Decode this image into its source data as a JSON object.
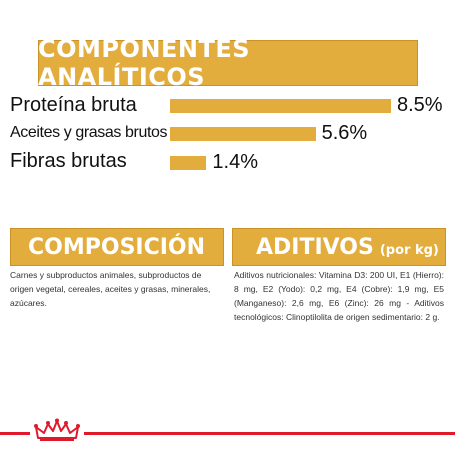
{
  "analytic": {
    "title": "COMPONENTES ANALÍTICOS",
    "rows": [
      {
        "label": "Proteína bruta",
        "value": "8.5%",
        "percent": 8.5
      },
      {
        "label": "Aceites y grasas brutos",
        "value": "5.6%",
        "percent": 5.6
      },
      {
        "label": "Fibras brutas",
        "value": "1.4%",
        "percent": 1.4
      }
    ]
  },
  "composicion": {
    "title": "COMPOSICIÓN",
    "text": "Carnes y subproductos animales, subproductos de origen vegetal, cereales, aceites y grasas, minerales, azúcares."
  },
  "aditivos": {
    "title": "ADITIVOS",
    "subtitle": "(por kg)",
    "text": "Aditivos nutricionales: Vitamina D3: 200 UI, E1 (Hierro): 8 mg, E2 (Yodo): 0,2 mg, E4 (Cobre): 1,9 mg, E5 (Manganeso): 2,6 mg, E6 (Zinc): 26 mg - Aditivos tecnológicos: Clinoptilolita de origen sedimentario: 2 g."
  },
  "colors": {
    "accent": "#e2ad3c",
    "brand_red": "#e01a2b"
  },
  "footer": {
    "logo_icon": "crown-icon"
  }
}
